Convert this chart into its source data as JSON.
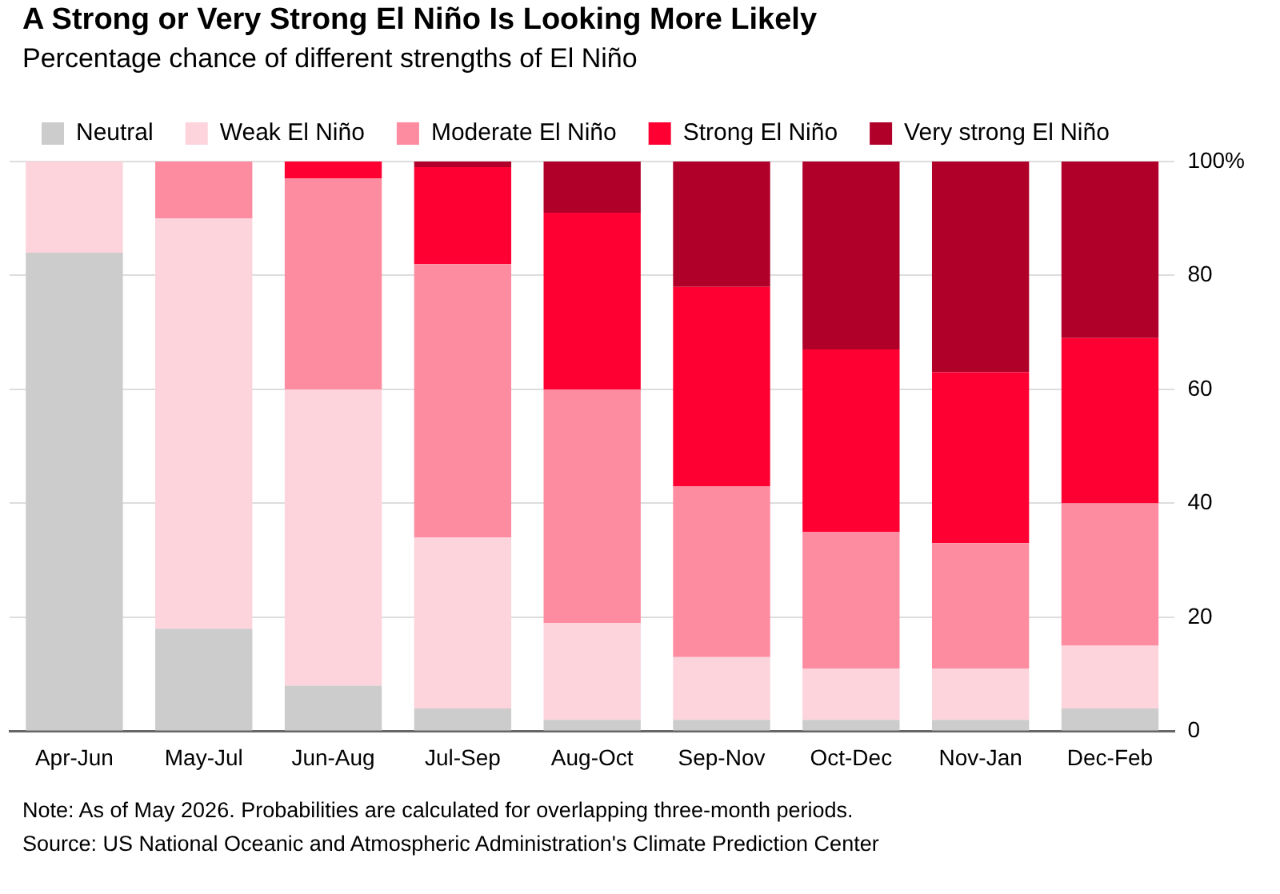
{
  "chart_data": {
    "type": "bar",
    "title": "A Strong or Very Strong El Niño Is Looking More Likely",
    "subtitle": "Percentage chance of different strengths of El Niño",
    "categories": [
      "Apr-Jun",
      "May-Jul",
      "Jun-Aug",
      "Jul-Sep",
      "Aug-Oct",
      "Sep-Nov",
      "Oct-Dec",
      "Nov-Jan",
      "Dec-Feb"
    ],
    "series": [
      {
        "name": "Neutral",
        "color": "#cccccc",
        "values": [
          84,
          18,
          8,
          4,
          2,
          2,
          2,
          2,
          4
        ]
      },
      {
        "name": "Weak El Niño",
        "color": "#fdd3dc",
        "values": [
          16,
          72,
          52,
          30,
          17,
          11,
          9,
          9,
          11
        ]
      },
      {
        "name": "Moderate El Niño",
        "color": "#fd8ca0",
        "values": [
          0,
          10,
          37,
          48,
          41,
          30,
          24,
          22,
          25
        ]
      },
      {
        "name": "Strong El Niño",
        "color": "#ff0033",
        "values": [
          0,
          0,
          3,
          17,
          31,
          35,
          32,
          30,
          29
        ]
      },
      {
        "name": "Very strong El Niño",
        "color": "#b0002a",
        "values": [
          0,
          0,
          0,
          1,
          9,
          22,
          33,
          37,
          31
        ]
      }
    ],
    "stacked": true,
    "ylim": [
      0,
      100
    ],
    "yticks": [
      0,
      20,
      40,
      60,
      80,
      {
        "value": 100,
        "label": "100%"
      }
    ],
    "grid": "y",
    "legend": "top left",
    "annotations": [
      "Note: As of May 2026. Probabilities are calculated for overlapping three-month periods.",
      "Source: US National Oceanic and Atmospheric Administration's Climate Prediction Center"
    ]
  }
}
